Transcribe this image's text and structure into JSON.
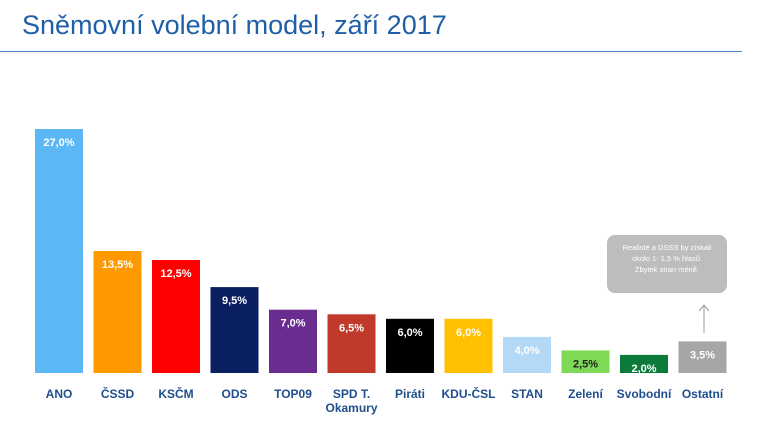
{
  "title": "Sněmovní volební model, září 2017",
  "note": {
    "lines": [
      "Realisté a DSSS by získali",
      "okolo 1- 1,5 % hlasů.",
      "Zbytek stran méně."
    ]
  },
  "chart_data": {
    "type": "bar",
    "title": "Sněmovní volební model, září 2017",
    "xlabel": "",
    "ylabel": "",
    "ylim": [
      0,
      27
    ],
    "grid": false,
    "categories": [
      "ANO",
      "ČSSD",
      "KSČM",
      "ODS",
      "TOP09",
      "SPD T. Okamury",
      "Piráti",
      "KDU-ČSL",
      "STAN",
      "Zelení",
      "Svobodní",
      "Ostatní"
    ],
    "category_lines": [
      [
        "ANO"
      ],
      [
        "ČSSD"
      ],
      [
        "KSČM"
      ],
      [
        "ODS"
      ],
      [
        "TOP09"
      ],
      [
        "SPD T.",
        "Okamury"
      ],
      [
        "Piráti"
      ],
      [
        "KDU-ČSL"
      ],
      [
        "STAN"
      ],
      [
        "Zelení"
      ],
      [
        "Svobodní"
      ],
      [
        "Ostatní"
      ]
    ],
    "values": [
      27.0,
      13.5,
      12.5,
      9.5,
      7.0,
      6.5,
      6.0,
      6.0,
      4.0,
      2.5,
      2.0,
      3.5
    ],
    "value_labels": [
      "27,0%",
      "13,5%",
      "12,5%",
      "9,5%",
      "7,0%",
      "6,5%",
      "6,0%",
      "6,0%",
      "4,0%",
      "2,5%",
      "2,0%",
      "3,5%"
    ],
    "colors": [
      "#5bb8f5",
      "#ff9900",
      "#ff0000",
      "#0a2060",
      "#6a2c91",
      "#c0392b",
      "#000000",
      "#ffc000",
      "#b4d9f7",
      "#7ed957",
      "#0b7a3b",
      "#a6a6a6"
    ],
    "label_colors": [
      "#ffffff",
      "#ffffff",
      "#ffffff",
      "#ffffff",
      "#ffffff",
      "#ffffff",
      "#ffffff",
      "#ffffff",
      "#ffffff",
      "#222222",
      "#ffffff",
      "#ffffff"
    ]
  }
}
